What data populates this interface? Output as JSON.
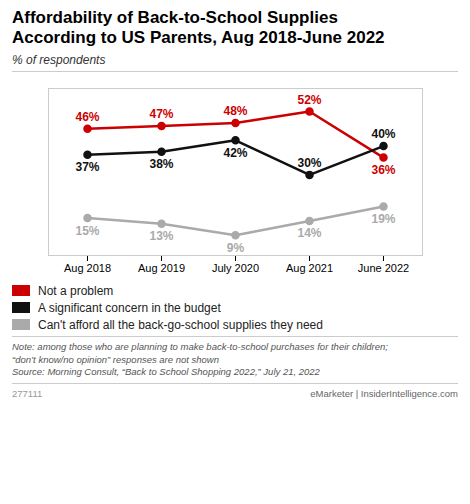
{
  "chart_data": {
    "type": "line",
    "title": "Affordability of Back-to-School Supplies\nAccording to US Parents, Aug 2018-June 2022",
    "subtitle": "% of respondents",
    "categories": [
      "Aug 2018",
      "Aug 2019",
      "July 2020",
      "Aug 2021",
      "June 2022"
    ],
    "series": [
      {
        "name": "Not a problem",
        "color": "#cc0000",
        "marker": "circle",
        "values": [
          46,
          47,
          48,
          52,
          36
        ],
        "value_labels": [
          "46%",
          "47%",
          "48%",
          "52%",
          "36%"
        ]
      },
      {
        "name": "A significant concern in the budget",
        "color": "#111111",
        "marker": "circle",
        "values": [
          37,
          38,
          42,
          30,
          40
        ],
        "value_labels": [
          "37%",
          "38%",
          "42%",
          "30%",
          "40%"
        ]
      },
      {
        "name": "Can't afford all the back-go-school supplies they need",
        "color": "#aaaaaa",
        "marker": "circle",
        "values": [
          15,
          13,
          9,
          14,
          19
        ],
        "value_labels": [
          "15%",
          "13%",
          "9%",
          "14%",
          "19%"
        ]
      }
    ],
    "ylim": [
      2,
      60
    ],
    "tick_labels": "x",
    "grid": false,
    "data_labels": true,
    "legend": "bottom",
    "annotations": [
      "Note: among those who are planning to make back-to-school purchases for their children;",
      "“don’t know/no opinion” responses are not shown",
      "Source: Morning Consult, “Back to School Shopping 2022,” July 21, 2022",
      "277111",
      "eMarketer | InsiderIntelligence.com"
    ]
  }
}
